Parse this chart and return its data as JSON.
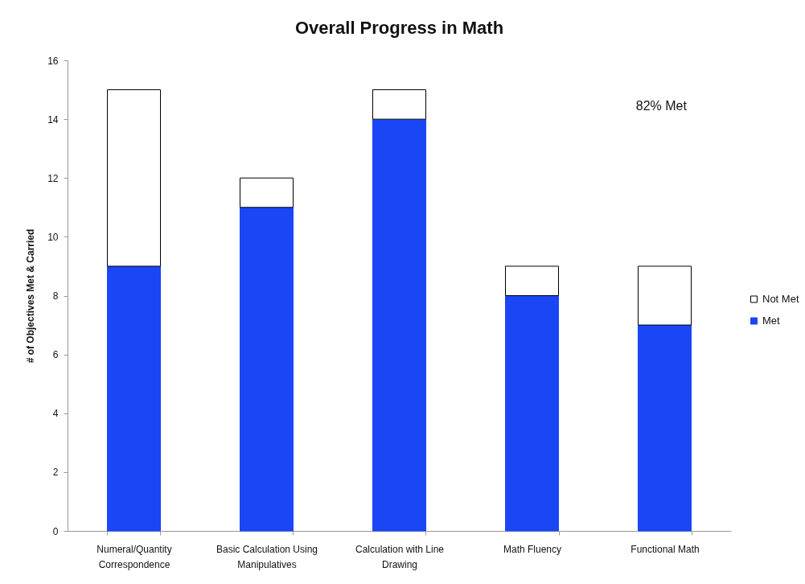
{
  "chart_data": {
    "type": "bar",
    "title": "Overall Progress in Math",
    "ylabel": "# of Objectives Met & Carried",
    "categories": [
      "Numeral/Quantity Correspondence",
      "Basic Calculation Using Manipulatives",
      "Calculation with Line Drawing",
      "Math Fluency",
      "Functional Math"
    ],
    "series": [
      {
        "name": "Met",
        "color": "#1b46f5",
        "values": [
          9,
          11,
          14,
          8,
          7
        ]
      },
      {
        "name": "Not Met",
        "color": "#ffffff",
        "values": [
          6,
          1,
          1,
          1,
          2
        ]
      }
    ],
    "stacked": true,
    "ylim": [
      0,
      16
    ],
    "yticks": [
      0,
      2,
      4,
      6,
      8,
      10,
      12,
      14,
      16
    ],
    "grid": false,
    "legend": "right",
    "annotations": [
      "82% Met"
    ]
  }
}
